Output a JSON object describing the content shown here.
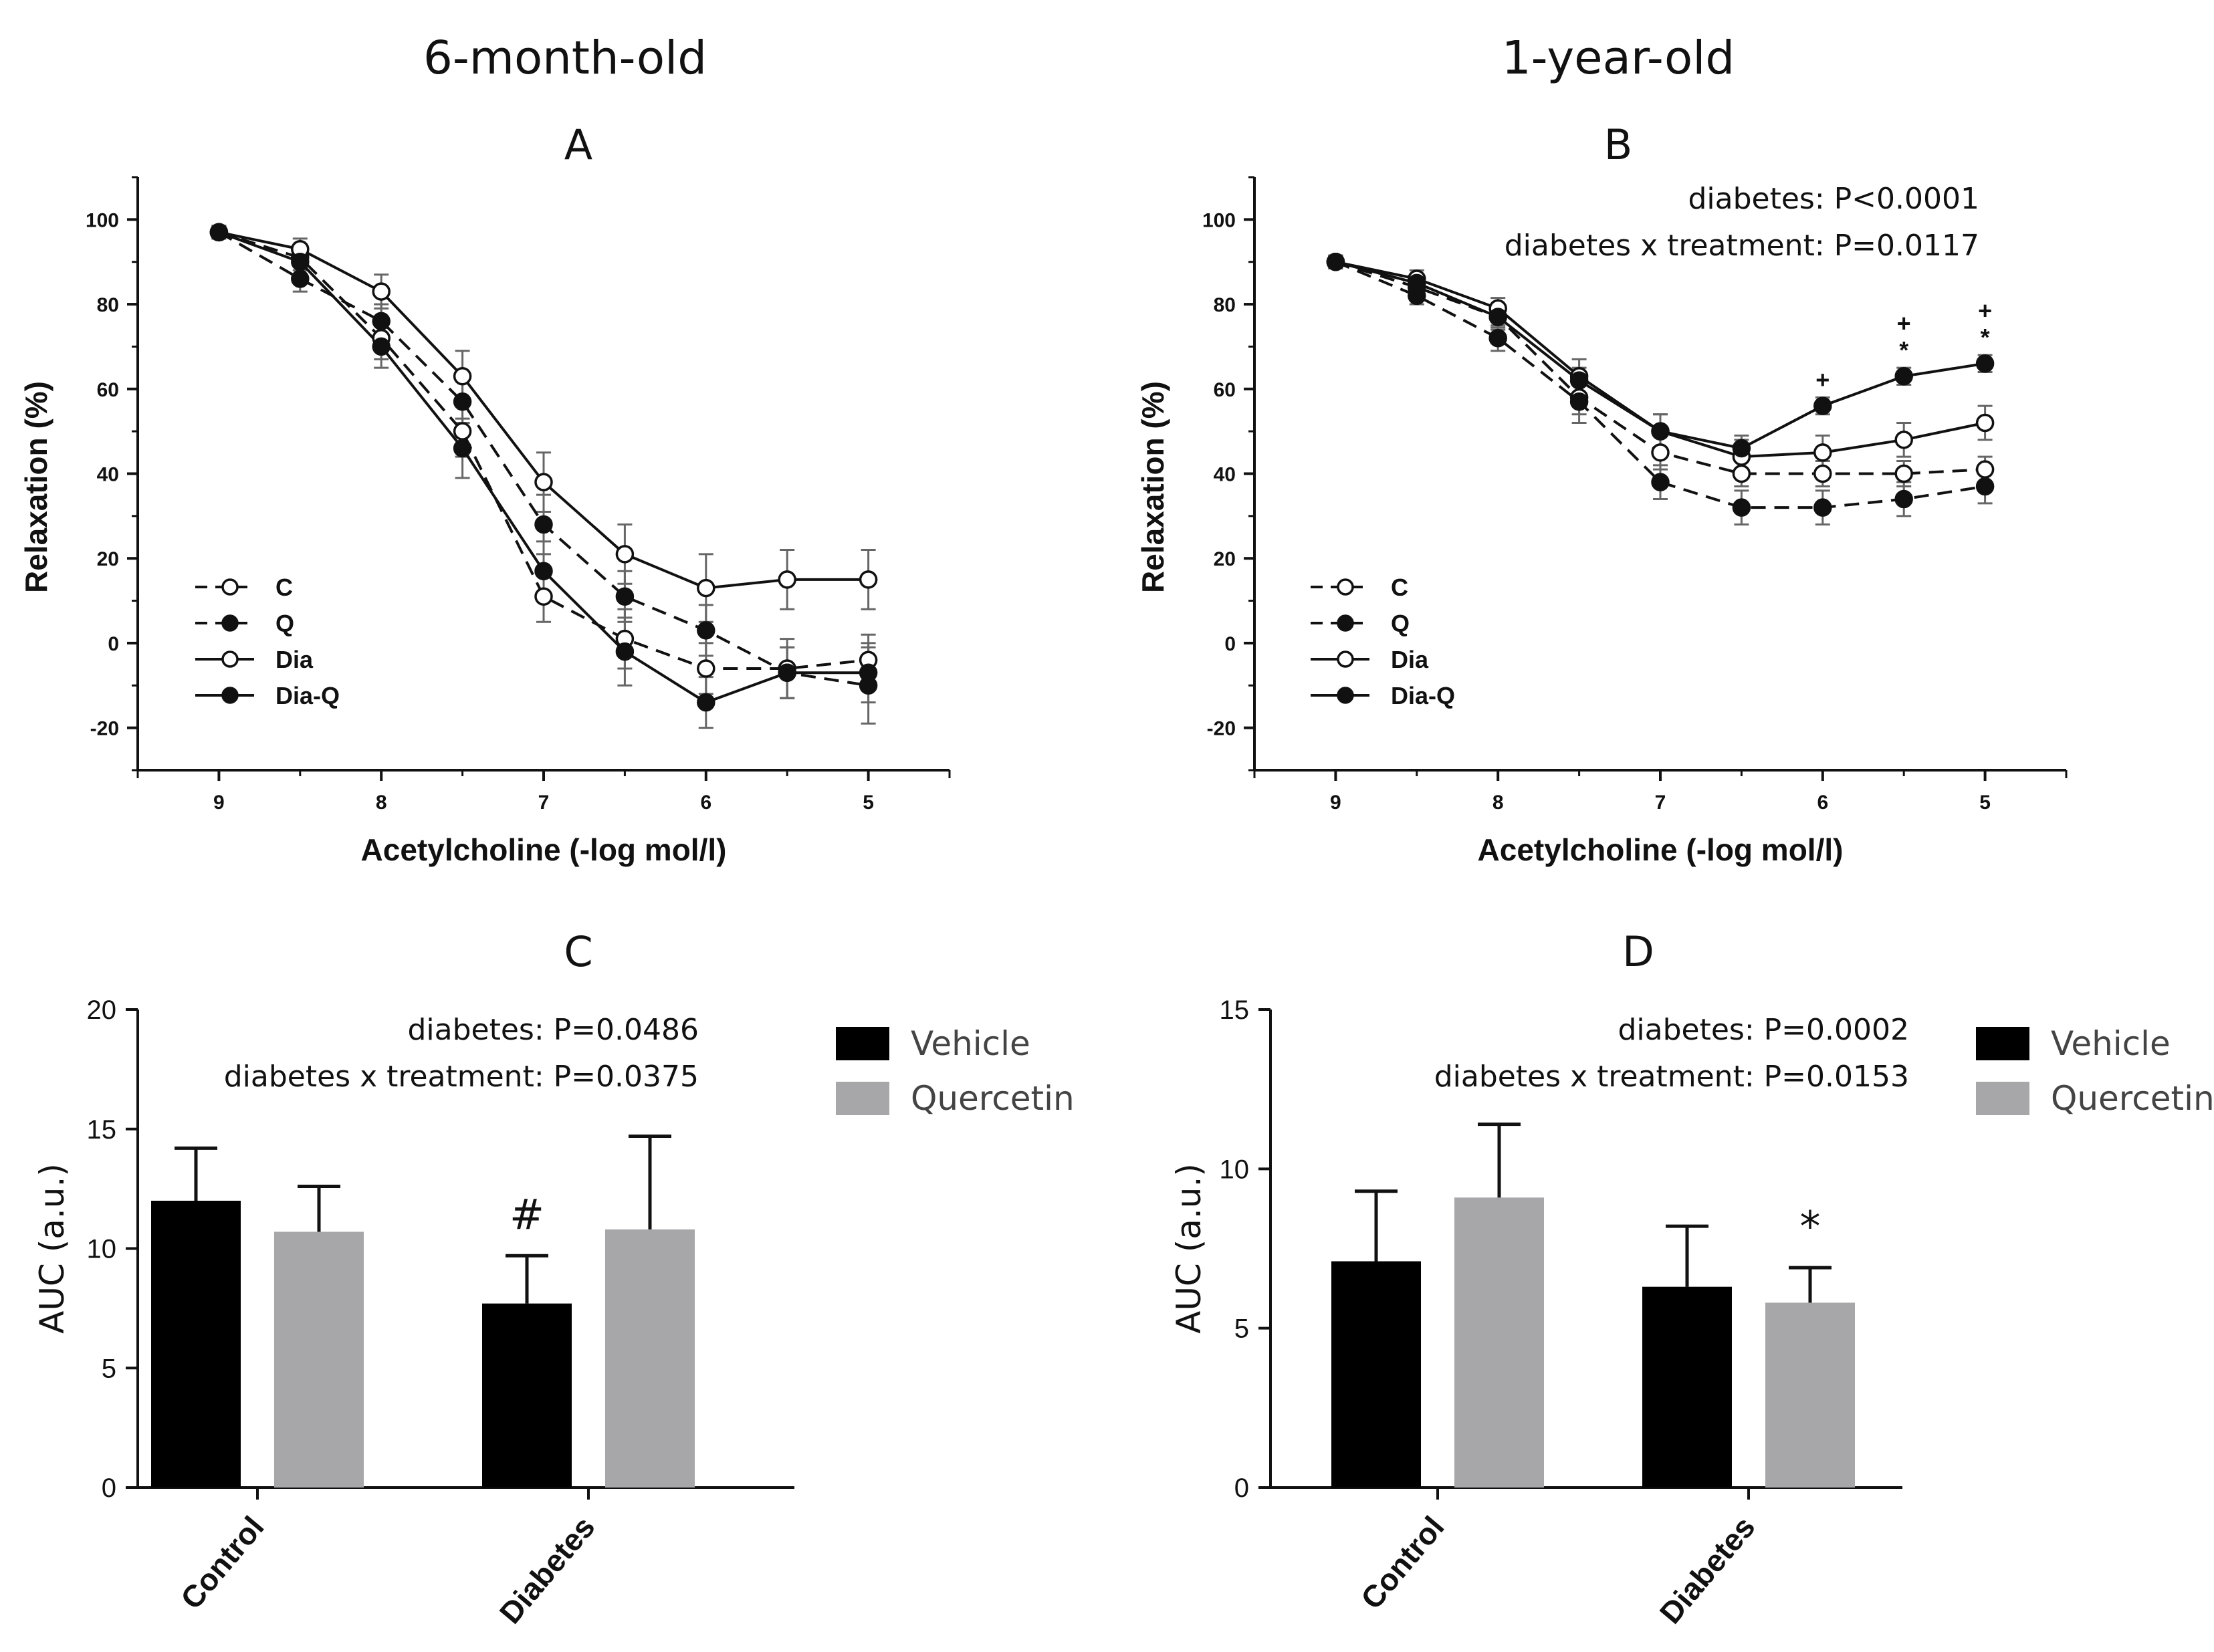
{
  "column_titles": [
    "6-month-old",
    "1-year-old"
  ],
  "colors": {
    "vehicle": "#000000",
    "quercetin": "#a7a6a8",
    "ink": "#111111"
  },
  "chart_data": [
    {
      "id": "A",
      "type": "line",
      "letter": "A",
      "xlabel": "Acetylcholine (-log mol/l)",
      "ylabel": "Relaxation (%)",
      "xlim": [
        4.5,
        9.5
      ],
      "ylim": [
        -30,
        110
      ],
      "xticks": [
        9,
        8,
        7,
        6,
        5
      ],
      "yticks": [
        100,
        80,
        60,
        40,
        20,
        0,
        -20
      ],
      "x": [
        9,
        8.5,
        8,
        7.5,
        7,
        6.5,
        6,
        5.5,
        5
      ],
      "annotations": [],
      "series": [
        {
          "name": "C",
          "dash": true,
          "filled": false,
          "values": [
            97,
            91,
            72,
            50,
            11,
            1,
            -6,
            -6,
            -4
          ],
          "errors": [
            1.5,
            3,
            5,
            6,
            6,
            7,
            6,
            7,
            6
          ]
        },
        {
          "name": "Q",
          "dash": true,
          "filled": true,
          "values": [
            97,
            86,
            76,
            57,
            28,
            11,
            3,
            -7,
            -10
          ],
          "errors": [
            1.5,
            3,
            4,
            5,
            7,
            6,
            6,
            6,
            9
          ]
        },
        {
          "name": "Dia",
          "dash": false,
          "filled": false,
          "values": [
            97,
            93,
            83,
            63,
            38,
            21,
            13,
            15,
            15
          ],
          "errors": [
            1.5,
            2.5,
            4,
            6,
            7,
            7,
            8,
            7,
            7
          ]
        },
        {
          "name": "Dia-Q",
          "dash": false,
          "filled": true,
          "values": [
            97,
            90,
            70,
            46,
            17,
            -2,
            -14,
            -7,
            -7
          ],
          "errors": [
            1.5,
            3,
            5,
            7,
            7,
            8,
            6,
            6,
            7
          ]
        }
      ],
      "markers": []
    },
    {
      "id": "B",
      "type": "line",
      "letter": "B",
      "xlabel": "Acetylcholine (-log mol/l)",
      "ylabel": "Relaxation (%)",
      "xlim": [
        4.5,
        9.5
      ],
      "ylim": [
        -30,
        110
      ],
      "xticks": [
        9,
        8,
        7,
        6,
        5
      ],
      "yticks": [
        100,
        80,
        60,
        40,
        20,
        0,
        -20
      ],
      "x": [
        9,
        8.5,
        8,
        7.5,
        7,
        6.5,
        6,
        5.5,
        5
      ],
      "annotations": [
        "diabetes:  P<0.0001",
        "diabetes x treatment:  P=0.0117"
      ],
      "series": [
        {
          "name": "C",
          "dash": true,
          "filled": false,
          "values": [
            90,
            84,
            77,
            58,
            45,
            40,
            40,
            40,
            41
          ],
          "errors": [
            1.5,
            2,
            3,
            4,
            4,
            3,
            3,
            3,
            3
          ]
        },
        {
          "name": "Q",
          "dash": true,
          "filled": true,
          "values": [
            90,
            82,
            72,
            57,
            38,
            32,
            32,
            34,
            37
          ],
          "errors": [
            1.5,
            2,
            3,
            5,
            4,
            4,
            4,
            4,
            4
          ]
        },
        {
          "name": "Dia",
          "dash": false,
          "filled": false,
          "values": [
            90,
            86,
            79,
            63,
            50,
            44,
            45,
            48,
            52
          ],
          "errors": [
            1.5,
            2,
            2.5,
            4,
            4,
            4,
            4,
            4,
            4
          ]
        },
        {
          "name": "Dia-Q",
          "dash": false,
          "filled": true,
          "values": [
            90,
            85,
            77,
            62,
            50,
            46,
            56,
            63,
            66
          ],
          "errors": [
            1.5,
            2,
            2.5,
            3,
            4,
            3,
            2,
            2,
            2
          ]
        }
      ],
      "markers": [
        {
          "x": 6,
          "text": "+"
        },
        {
          "x": 5.5,
          "text": "+"
        },
        {
          "x": 5.5,
          "text": "*"
        },
        {
          "x": 5,
          "text": "+"
        },
        {
          "x": 5,
          "text": "*"
        }
      ]
    },
    {
      "id": "C",
      "type": "bar",
      "letter": "C",
      "ylabel": "AUC (a.u.)",
      "ylim": [
        0,
        20
      ],
      "yticks": [
        0,
        5,
        10,
        15,
        20
      ],
      "categories": [
        "Control",
        "Diabetes"
      ],
      "series": [
        {
          "name": "Vehicle",
          "values": [
            12.0,
            7.7
          ],
          "errors": [
            2.2,
            2.0
          ]
        },
        {
          "name": "Quercetin",
          "values": [
            10.7,
            10.8
          ],
          "errors": [
            1.9,
            3.9
          ]
        }
      ],
      "annotations": [
        "diabetes: P=0.0486",
        "diabetes x treatment: P=0.0375"
      ],
      "markers": [
        {
          "category": 1,
          "series": 0,
          "text": "#"
        }
      ],
      "legend": [
        "Vehicle",
        "Quercetin"
      ]
    },
    {
      "id": "D",
      "type": "bar",
      "letter": "D",
      "ylabel": "AUC (a.u.)",
      "ylim": [
        0,
        15
      ],
      "yticks": [
        0,
        5,
        10,
        15
      ],
      "categories": [
        "Control",
        "Diabetes"
      ],
      "series": [
        {
          "name": "Vehicle",
          "values": [
            7.1,
            6.3
          ],
          "errors": [
            2.2,
            1.9
          ]
        },
        {
          "name": "Quercetin",
          "values": [
            9.1,
            5.8
          ],
          "errors": [
            2.3,
            1.1
          ]
        }
      ],
      "annotations": [
        "diabetes: P=0.0002",
        "diabetes x treatment: P=0.0153"
      ],
      "markers": [
        {
          "category": 1,
          "series": 1,
          "text": "*"
        }
      ],
      "legend": [
        "Vehicle",
        "Quercetin"
      ]
    }
  ]
}
